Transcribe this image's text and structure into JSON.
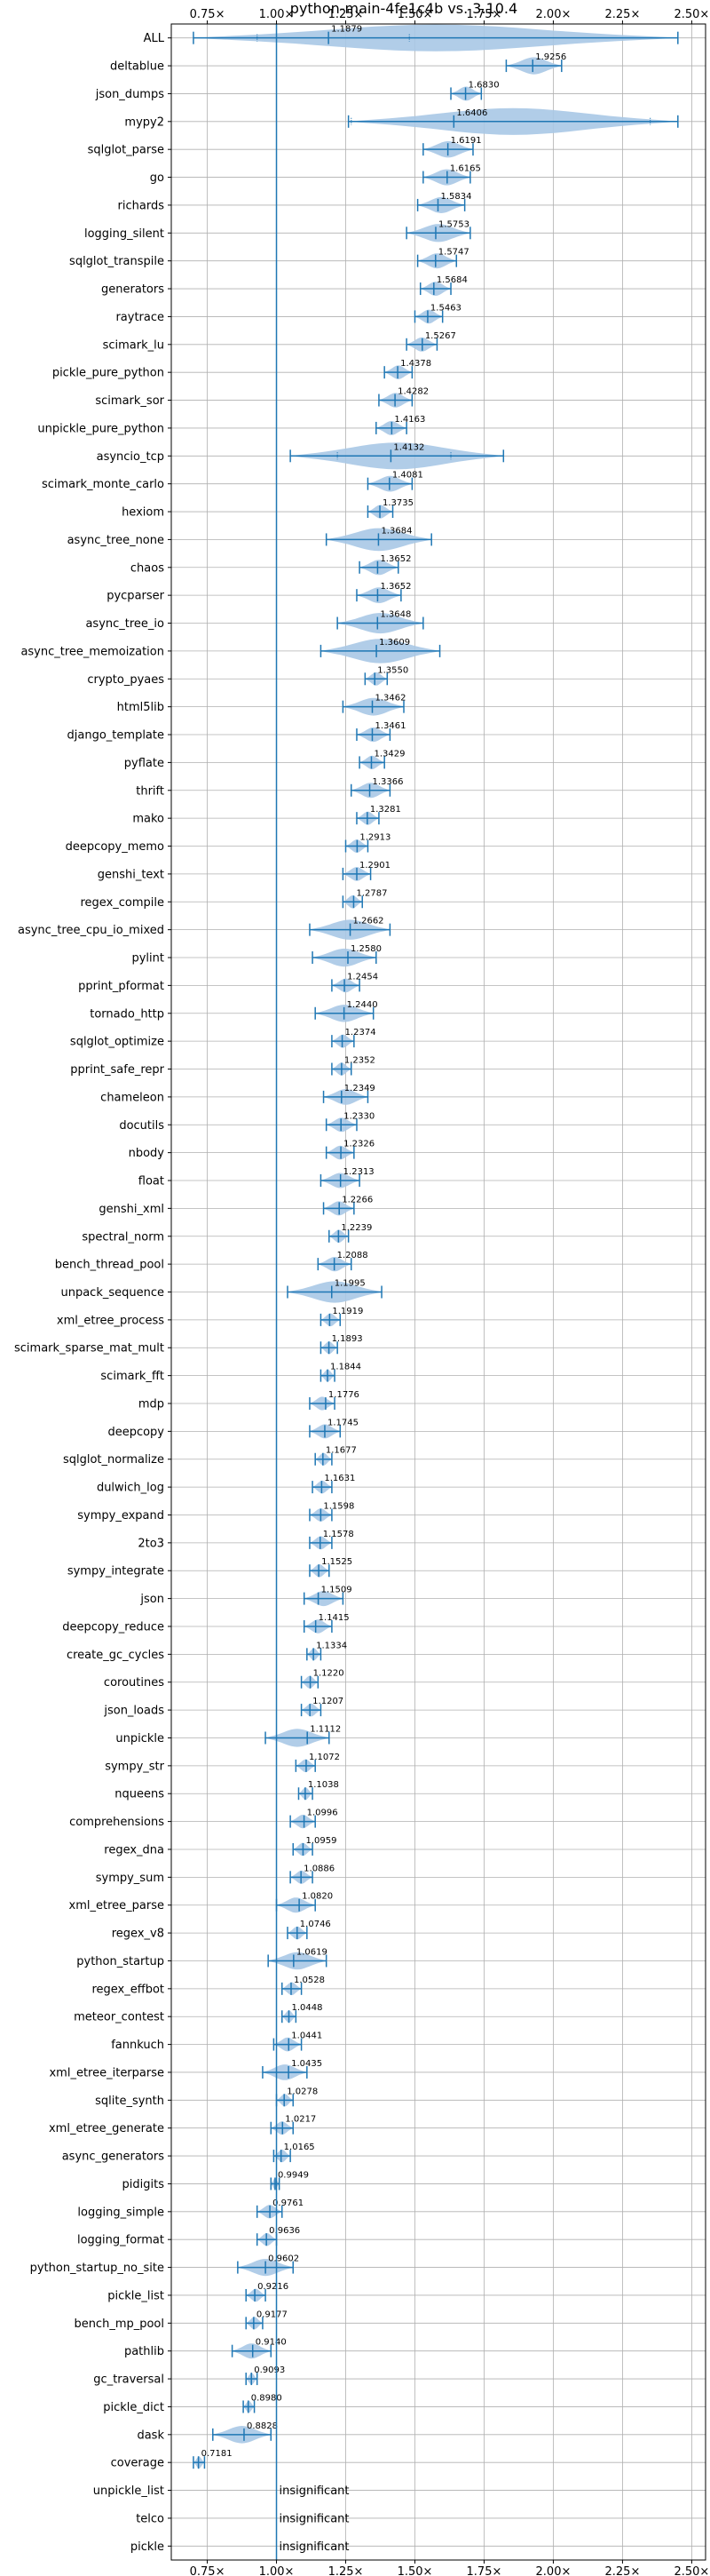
{
  "chart_data": {
    "type": "violin",
    "title": "python-main-4fe1c4b vs. 3.10.4",
    "xlim": [
      0.62,
      2.55
    ],
    "x_ticks": [
      0.75,
      1.0,
      1.25,
      1.5,
      1.75,
      2.0,
      2.25,
      2.5
    ],
    "x_tick_labels": [
      "0.75×",
      "1.00×",
      "1.25×",
      "1.50×",
      "1.75×",
      "2.00×",
      "2.25×",
      "2.50×"
    ],
    "reference_line": 1.0,
    "grid": true,
    "insignificant_label": "insignificant",
    "color": "#1f77b4",
    "violin_color": "#a8c8e6",
    "benchmarks": [
      {
        "name": "ALL",
        "value": 1.1879,
        "label": "1.1879",
        "min": 0.7,
        "max": 2.45,
        "q1": 0.93,
        "q3": 1.48
      },
      {
        "name": "deltablue",
        "value": 1.9256,
        "label": "1.9256",
        "min": 1.83,
        "max": 2.03
      },
      {
        "name": "json_dumps",
        "value": 1.683,
        "label": "1.6830",
        "min": 1.63,
        "max": 1.74
      },
      {
        "name": "mypy2",
        "value": 1.6406,
        "label": "1.6406",
        "min": 1.26,
        "max": 2.45,
        "q1": 1.27,
        "q3": 2.35
      },
      {
        "name": "sqlglot_parse",
        "value": 1.6191,
        "label": "1.6191",
        "min": 1.53,
        "max": 1.71
      },
      {
        "name": "go",
        "value": 1.6165,
        "label": "1.6165",
        "min": 1.53,
        "max": 1.7
      },
      {
        "name": "richards",
        "value": 1.5834,
        "label": "1.5834",
        "min": 1.51,
        "max": 1.68
      },
      {
        "name": "logging_silent",
        "value": 1.5753,
        "label": "1.5753",
        "min": 1.47,
        "max": 1.7
      },
      {
        "name": "sqlglot_transpile",
        "value": 1.5747,
        "label": "1.5747",
        "min": 1.51,
        "max": 1.65
      },
      {
        "name": "generators",
        "value": 1.5684,
        "label": "1.5684",
        "min": 1.52,
        "max": 1.63
      },
      {
        "name": "raytrace",
        "value": 1.5463,
        "label": "1.5463",
        "min": 1.5,
        "max": 1.6
      },
      {
        "name": "scimark_lu",
        "value": 1.5267,
        "label": "1.5267",
        "min": 1.47,
        "max": 1.58
      },
      {
        "name": "pickle_pure_python",
        "value": 1.4378,
        "label": "1.4378",
        "min": 1.39,
        "max": 1.49
      },
      {
        "name": "scimark_sor",
        "value": 1.4282,
        "label": "1.4282",
        "min": 1.37,
        "max": 1.49
      },
      {
        "name": "unpickle_pure_python",
        "value": 1.4163,
        "label": "1.4163",
        "min": 1.36,
        "max": 1.47
      },
      {
        "name": "asyncio_tcp",
        "value": 1.4132,
        "label": "1.4132",
        "min": 1.05,
        "max": 1.82,
        "q1": 1.22,
        "q3": 1.63
      },
      {
        "name": "scimark_monte_carlo",
        "value": 1.4081,
        "label": "1.4081",
        "min": 1.33,
        "max": 1.49
      },
      {
        "name": "hexiom",
        "value": 1.3735,
        "label": "1.3735",
        "min": 1.33,
        "max": 1.42
      },
      {
        "name": "async_tree_none",
        "value": 1.3684,
        "label": "1.3684",
        "min": 1.18,
        "max": 1.56
      },
      {
        "name": "chaos",
        "value": 1.3652,
        "label": "1.3652",
        "min": 1.3,
        "max": 1.44
      },
      {
        "name": "pycparser",
        "value": 1.3652,
        "label": "1.3652",
        "min": 1.29,
        "max": 1.45
      },
      {
        "name": "async_tree_io",
        "value": 1.3648,
        "label": "1.3648",
        "min": 1.22,
        "max": 1.53
      },
      {
        "name": "async_tree_memoization",
        "value": 1.3609,
        "label": "1.3609",
        "min": 1.16,
        "max": 1.59
      },
      {
        "name": "crypto_pyaes",
        "value": 1.355,
        "label": "1.3550",
        "min": 1.32,
        "max": 1.4
      },
      {
        "name": "html5lib",
        "value": 1.3462,
        "label": "1.3462",
        "min": 1.24,
        "max": 1.46
      },
      {
        "name": "django_template",
        "value": 1.3461,
        "label": "1.3461",
        "min": 1.29,
        "max": 1.41
      },
      {
        "name": "pyflate",
        "value": 1.3429,
        "label": "1.3429",
        "min": 1.3,
        "max": 1.39
      },
      {
        "name": "thrift",
        "value": 1.3366,
        "label": "1.3366",
        "min": 1.27,
        "max": 1.41
      },
      {
        "name": "mako",
        "value": 1.3281,
        "label": "1.3281",
        "min": 1.29,
        "max": 1.37
      },
      {
        "name": "deepcopy_memo",
        "value": 1.2913,
        "label": "1.2913",
        "min": 1.25,
        "max": 1.33
      },
      {
        "name": "genshi_text",
        "value": 1.2901,
        "label": "1.2901",
        "min": 1.24,
        "max": 1.34
      },
      {
        "name": "regex_compile",
        "value": 1.2787,
        "label": "1.2787",
        "min": 1.24,
        "max": 1.31
      },
      {
        "name": "async_tree_cpu_io_mixed",
        "value": 1.2662,
        "label": "1.2662",
        "min": 1.12,
        "max": 1.41
      },
      {
        "name": "pylint",
        "value": 1.258,
        "label": "1.2580",
        "min": 1.13,
        "max": 1.36
      },
      {
        "name": "pprint_pformat",
        "value": 1.2454,
        "label": "1.2454",
        "min": 1.2,
        "max": 1.3
      },
      {
        "name": "tornado_http",
        "value": 1.244,
        "label": "1.2440",
        "min": 1.14,
        "max": 1.35
      },
      {
        "name": "sqlglot_optimize",
        "value": 1.2374,
        "label": "1.2374",
        "min": 1.2,
        "max": 1.28
      },
      {
        "name": "pprint_safe_repr",
        "value": 1.2352,
        "label": "1.2352",
        "min": 1.2,
        "max": 1.27
      },
      {
        "name": "chameleon",
        "value": 1.2349,
        "label": "1.2349",
        "min": 1.17,
        "max": 1.33
      },
      {
        "name": "docutils",
        "value": 1.233,
        "label": "1.2330",
        "min": 1.18,
        "max": 1.29
      },
      {
        "name": "nbody",
        "value": 1.2326,
        "label": "1.2326",
        "min": 1.18,
        "max": 1.28
      },
      {
        "name": "float",
        "value": 1.2313,
        "label": "1.2313",
        "min": 1.16,
        "max": 1.3
      },
      {
        "name": "genshi_xml",
        "value": 1.2266,
        "label": "1.2266",
        "min": 1.17,
        "max": 1.28
      },
      {
        "name": "spectral_norm",
        "value": 1.2239,
        "label": "1.2239",
        "min": 1.19,
        "max": 1.26
      },
      {
        "name": "bench_thread_pool",
        "value": 1.2088,
        "label": "1.2088",
        "min": 1.15,
        "max": 1.27
      },
      {
        "name": "unpack_sequence",
        "value": 1.1995,
        "label": "1.1995",
        "min": 1.04,
        "max": 1.38
      },
      {
        "name": "xml_etree_process",
        "value": 1.1919,
        "label": "1.1919",
        "min": 1.16,
        "max": 1.23
      },
      {
        "name": "scimark_sparse_mat_mult",
        "value": 1.1893,
        "label": "1.1893",
        "min": 1.16,
        "max": 1.22
      },
      {
        "name": "scimark_fft",
        "value": 1.1844,
        "label": "1.1844",
        "min": 1.16,
        "max": 1.21
      },
      {
        "name": "mdp",
        "value": 1.1776,
        "label": "1.1776",
        "min": 1.12,
        "max": 1.21
      },
      {
        "name": "deepcopy",
        "value": 1.1745,
        "label": "1.1745",
        "min": 1.12,
        "max": 1.23
      },
      {
        "name": "sqlglot_normalize",
        "value": 1.1677,
        "label": "1.1677",
        "min": 1.14,
        "max": 1.2
      },
      {
        "name": "dulwich_log",
        "value": 1.1631,
        "label": "1.1631",
        "min": 1.13,
        "max": 1.2
      },
      {
        "name": "sympy_expand",
        "value": 1.1598,
        "label": "1.1598",
        "min": 1.12,
        "max": 1.2
      },
      {
        "name": "2to3",
        "value": 1.1578,
        "label": "1.1578",
        "min": 1.12,
        "max": 1.2
      },
      {
        "name": "sympy_integrate",
        "value": 1.1525,
        "label": "1.1525",
        "min": 1.12,
        "max": 1.19
      },
      {
        "name": "json",
        "value": 1.1509,
        "label": "1.1509",
        "min": 1.1,
        "max": 1.24
      },
      {
        "name": "deepcopy_reduce",
        "value": 1.1415,
        "label": "1.1415",
        "min": 1.1,
        "max": 1.2
      },
      {
        "name": "create_gc_cycles",
        "value": 1.1334,
        "label": "1.1334",
        "min": 1.11,
        "max": 1.16
      },
      {
        "name": "coroutines",
        "value": 1.122,
        "label": "1.1220",
        "min": 1.09,
        "max": 1.15
      },
      {
        "name": "json_loads",
        "value": 1.1207,
        "label": "1.1207",
        "min": 1.09,
        "max": 1.16
      },
      {
        "name": "unpickle",
        "value": 1.1112,
        "label": "1.1112",
        "min": 0.96,
        "max": 1.19
      },
      {
        "name": "sympy_str",
        "value": 1.1072,
        "label": "1.1072",
        "min": 1.07,
        "max": 1.14
      },
      {
        "name": "nqueens",
        "value": 1.1038,
        "label": "1.1038",
        "min": 1.08,
        "max": 1.13
      },
      {
        "name": "comprehensions",
        "value": 1.0996,
        "label": "1.0996",
        "min": 1.05,
        "max": 1.14
      },
      {
        "name": "regex_dna",
        "value": 1.0959,
        "label": "1.0959",
        "min": 1.06,
        "max": 1.13
      },
      {
        "name": "sympy_sum",
        "value": 1.0886,
        "label": "1.0886",
        "min": 1.05,
        "max": 1.13
      },
      {
        "name": "xml_etree_parse",
        "value": 1.082,
        "label": "1.0820",
        "min": 1.0,
        "max": 1.14
      },
      {
        "name": "regex_v8",
        "value": 1.0746,
        "label": "1.0746",
        "min": 1.04,
        "max": 1.11
      },
      {
        "name": "python_startup",
        "value": 1.0619,
        "label": "1.0619",
        "min": 0.97,
        "max": 1.18
      },
      {
        "name": "regex_effbot",
        "value": 1.0528,
        "label": "1.0528",
        "min": 1.02,
        "max": 1.09
      },
      {
        "name": "meteor_contest",
        "value": 1.0448,
        "label": "1.0448",
        "min": 1.02,
        "max": 1.07
      },
      {
        "name": "fannkuch",
        "value": 1.0441,
        "label": "1.0441",
        "min": 0.99,
        "max": 1.09
      },
      {
        "name": "xml_etree_iterparse",
        "value": 1.0435,
        "label": "1.0435",
        "min": 0.95,
        "max": 1.11
      },
      {
        "name": "sqlite_synth",
        "value": 1.0278,
        "label": "1.0278",
        "min": 1.0,
        "max": 1.06
      },
      {
        "name": "xml_etree_generate",
        "value": 1.0217,
        "label": "1.0217",
        "min": 0.98,
        "max": 1.06
      },
      {
        "name": "async_generators",
        "value": 1.0165,
        "label": "1.0165",
        "min": 0.99,
        "max": 1.05
      },
      {
        "name": "pidigits",
        "value": 0.9949,
        "label": "0.9949",
        "min": 0.98,
        "max": 1.01
      },
      {
        "name": "logging_simple",
        "value": 0.9761,
        "label": "0.9761",
        "min": 0.93,
        "max": 1.02
      },
      {
        "name": "logging_format",
        "value": 0.9636,
        "label": "0.9636",
        "min": 0.93,
        "max": 1.0
      },
      {
        "name": "python_startup_no_site",
        "value": 0.9602,
        "label": "0.9602",
        "min": 0.86,
        "max": 1.06
      },
      {
        "name": "pickle_list",
        "value": 0.9216,
        "label": "0.9216",
        "min": 0.89,
        "max": 0.96
      },
      {
        "name": "bench_mp_pool",
        "value": 0.9177,
        "label": "0.9177",
        "min": 0.89,
        "max": 0.95
      },
      {
        "name": "pathlib",
        "value": 0.914,
        "label": "0.9140",
        "min": 0.84,
        "max": 0.98
      },
      {
        "name": "gc_traversal",
        "value": 0.9093,
        "label": "0.9093",
        "min": 0.89,
        "max": 0.93
      },
      {
        "name": "pickle_dict",
        "value": 0.898,
        "label": "0.8980",
        "min": 0.88,
        "max": 0.92
      },
      {
        "name": "dask",
        "value": 0.8828,
        "label": "0.8828",
        "min": 0.77,
        "max": 0.98
      },
      {
        "name": "coverage",
        "value": 0.7181,
        "label": "0.7181",
        "min": 0.7,
        "max": 0.74
      },
      {
        "name": "unpickle_list",
        "value": null,
        "label": "",
        "insignificant": true
      },
      {
        "name": "telco",
        "value": null,
        "label": "",
        "insignificant": true
      },
      {
        "name": "pickle",
        "value": null,
        "label": "",
        "insignificant": true
      }
    ]
  }
}
